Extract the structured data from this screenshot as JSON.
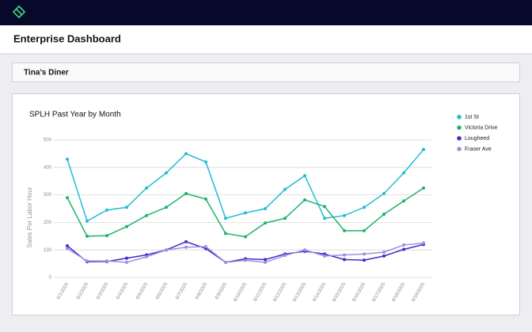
{
  "header": {
    "title": "Enterprise Dashboard"
  },
  "location": {
    "name": "Tina’s Diner"
  },
  "chart_data": {
    "type": "line",
    "title": "SPLH Past Year by Month",
    "y_label": "Sales Per Labor Hour",
    "categories": [
      "6/1/2025",
      "6/2/2025",
      "6/3/2025",
      "6/4/2025",
      "6/5/2025",
      "6/6/2025",
      "6/7/2025",
      "6/8/2025",
      "6/9/2025",
      "6/10/2025",
      "6/11/2025",
      "6/12/2025",
      "6/13/2025",
      "6/14/2025",
      "6/15/2025",
      "6/16/2025",
      "6/17/2025",
      "6/18/2025",
      "6/19/2025"
    ],
    "series": [
      {
        "name": "1st St",
        "color": "#22bcd4",
        "values": [
          430,
          205,
          245,
          255,
          325,
          380,
          450,
          420,
          215,
          235,
          250,
          320,
          370,
          215,
          225,
          255,
          305,
          380,
          465
        ]
      },
      {
        "name": "Victoria Drive",
        "color": "#1fb36b",
        "values": [
          290,
          150,
          152,
          185,
          225,
          255,
          305,
          285,
          160,
          148,
          198,
          215,
          282,
          258,
          170,
          170,
          230,
          278,
          325
        ]
      },
      {
        "name": "Lougheed",
        "color": "#3a2fc9",
        "values": [
          115,
          57,
          58,
          70,
          82,
          100,
          130,
          105,
          55,
          68,
          65,
          85,
          95,
          85,
          65,
          63,
          78,
          102,
          120
        ]
      },
      {
        "name": "Fraser Ave",
        "color": "#a78be0",
        "values": [
          105,
          60,
          60,
          55,
          75,
          100,
          110,
          112,
          55,
          62,
          55,
          80,
          100,
          78,
          82,
          85,
          92,
          118,
          125
        ]
      }
    ],
    "ylim": [
      0,
      500
    ],
    "yticks": [
      0,
      100,
      200,
      300,
      400,
      500
    ],
    "grid": true,
    "legend": "right"
  }
}
